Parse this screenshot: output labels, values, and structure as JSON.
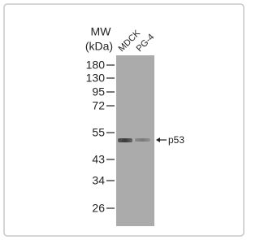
{
  "mw_label": {
    "line1": "MW",
    "line2": "(kDa)"
  },
  "lanes": [
    "MDCK",
    "PG-4"
  ],
  "markers": [
    "180",
    "130",
    "95",
    "72",
    "55",
    "43",
    "34",
    "26"
  ],
  "target": "p53"
}
